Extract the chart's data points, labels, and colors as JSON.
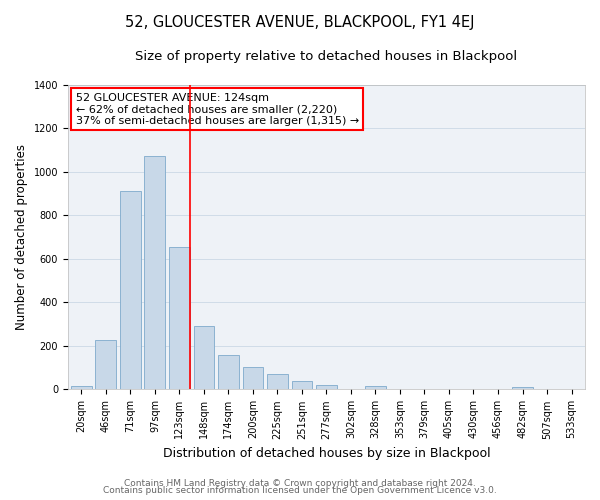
{
  "title": "52, GLOUCESTER AVENUE, BLACKPOOL, FY1 4EJ",
  "subtitle": "Size of property relative to detached houses in Blackpool",
  "xlabel": "Distribution of detached houses by size in Blackpool",
  "ylabel": "Number of detached properties",
  "categories": [
    "20sqm",
    "46sqm",
    "71sqm",
    "97sqm",
    "123sqm",
    "148sqm",
    "174sqm",
    "200sqm",
    "225sqm",
    "251sqm",
    "277sqm",
    "302sqm",
    "328sqm",
    "353sqm",
    "379sqm",
    "405sqm",
    "430sqm",
    "456sqm",
    "482sqm",
    "507sqm",
    "533sqm"
  ],
  "values": [
    15,
    228,
    912,
    1075,
    655,
    292,
    158,
    105,
    70,
    40,
    22,
    0,
    18,
    0,
    0,
    0,
    0,
    0,
    12,
    0,
    0
  ],
  "bar_color": "#c8d8e8",
  "bar_edgecolor": "#7faacc",
  "vline_index": 4,
  "annotation_box_text": "52 GLOUCESTER AVENUE: 124sqm\n← 62% of detached houses are smaller (2,220)\n37% of semi-detached houses are larger (1,315) →",
  "annotation_box_facecolor": "white",
  "annotation_box_edgecolor": "red",
  "vline_color": "red",
  "footer1": "Contains HM Land Registry data © Crown copyright and database right 2024.",
  "footer2": "Contains public sector information licensed under the Open Government Licence v3.0.",
  "ylim": [
    0,
    1400
  ],
  "yticks": [
    0,
    200,
    400,
    600,
    800,
    1000,
    1200,
    1400
  ],
  "grid_color": "#d0dce8",
  "bg_color": "#eef2f7",
  "title_fontsize": 10.5,
  "subtitle_fontsize": 9.5,
  "ylabel_fontsize": 8.5,
  "xlabel_fontsize": 9,
  "tick_fontsize": 7,
  "footer_fontsize": 6.5,
  "annotation_fontsize": 8
}
